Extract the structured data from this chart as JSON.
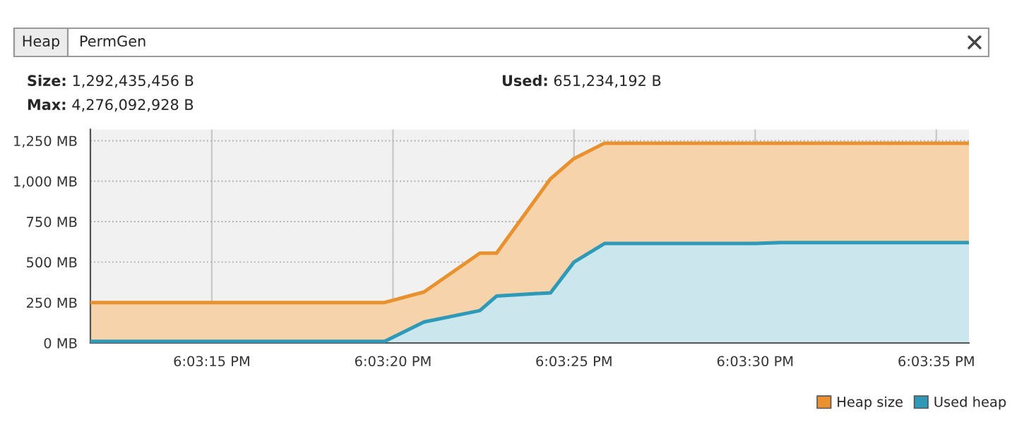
{
  "chart_data": {
    "type": "area",
    "x": [
      18.053236,
      18.055492,
      18.055794,
      18.056222,
      18.05635,
      18.056764,
      18.056944,
      18.057178,
      18.058333,
      18.058531,
      18.059972
    ],
    "series": [
      {
        "name": "Heap size",
        "color": "#e8912e",
        "values": [
          250,
          250,
          315,
          555,
          555,
          1015,
          1140,
          1235,
          1235,
          1235,
          1235
        ]
      },
      {
        "name": "Used heap",
        "color": "#2e9ab8",
        "values": [
          10,
          10,
          130,
          200,
          290,
          310,
          500,
          615,
          615,
          620,
          620
        ]
      }
    ],
    "xlim": [
      18.053236,
      18.059972
    ],
    "xticks": [
      {
        "value": 18.054167,
        "label": "6:03:15 PM"
      },
      {
        "value": 18.055556,
        "label": "6:03:20 PM"
      },
      {
        "value": 18.056944,
        "label": "6:03:25 PM"
      },
      {
        "value": 18.058333,
        "label": "6:03:30 PM"
      },
      {
        "value": 18.059722,
        "label": "6:03:35 PM"
      }
    ],
    "ylim": [
      0,
      1320
    ],
    "yticks": [
      {
        "value": 0,
        "label": "0 MB"
      },
      {
        "value": 250,
        "label": "250 MB"
      },
      {
        "value": 500,
        "label": "500 MB"
      },
      {
        "value": 750,
        "label": "750 MB"
      },
      {
        "value": 1000,
        "label": "1,000 MB"
      },
      {
        "value": 1250,
        "label": "1,250 MB"
      }
    ],
    "grid": true,
    "legend": "bottom right",
    "annotations": [
      "Heap",
      "PermGen",
      "Size: 1,292,435,456 B",
      "Used: 651,234,192 B",
      "Max: 4,276,092,928 B"
    ]
  }
}
